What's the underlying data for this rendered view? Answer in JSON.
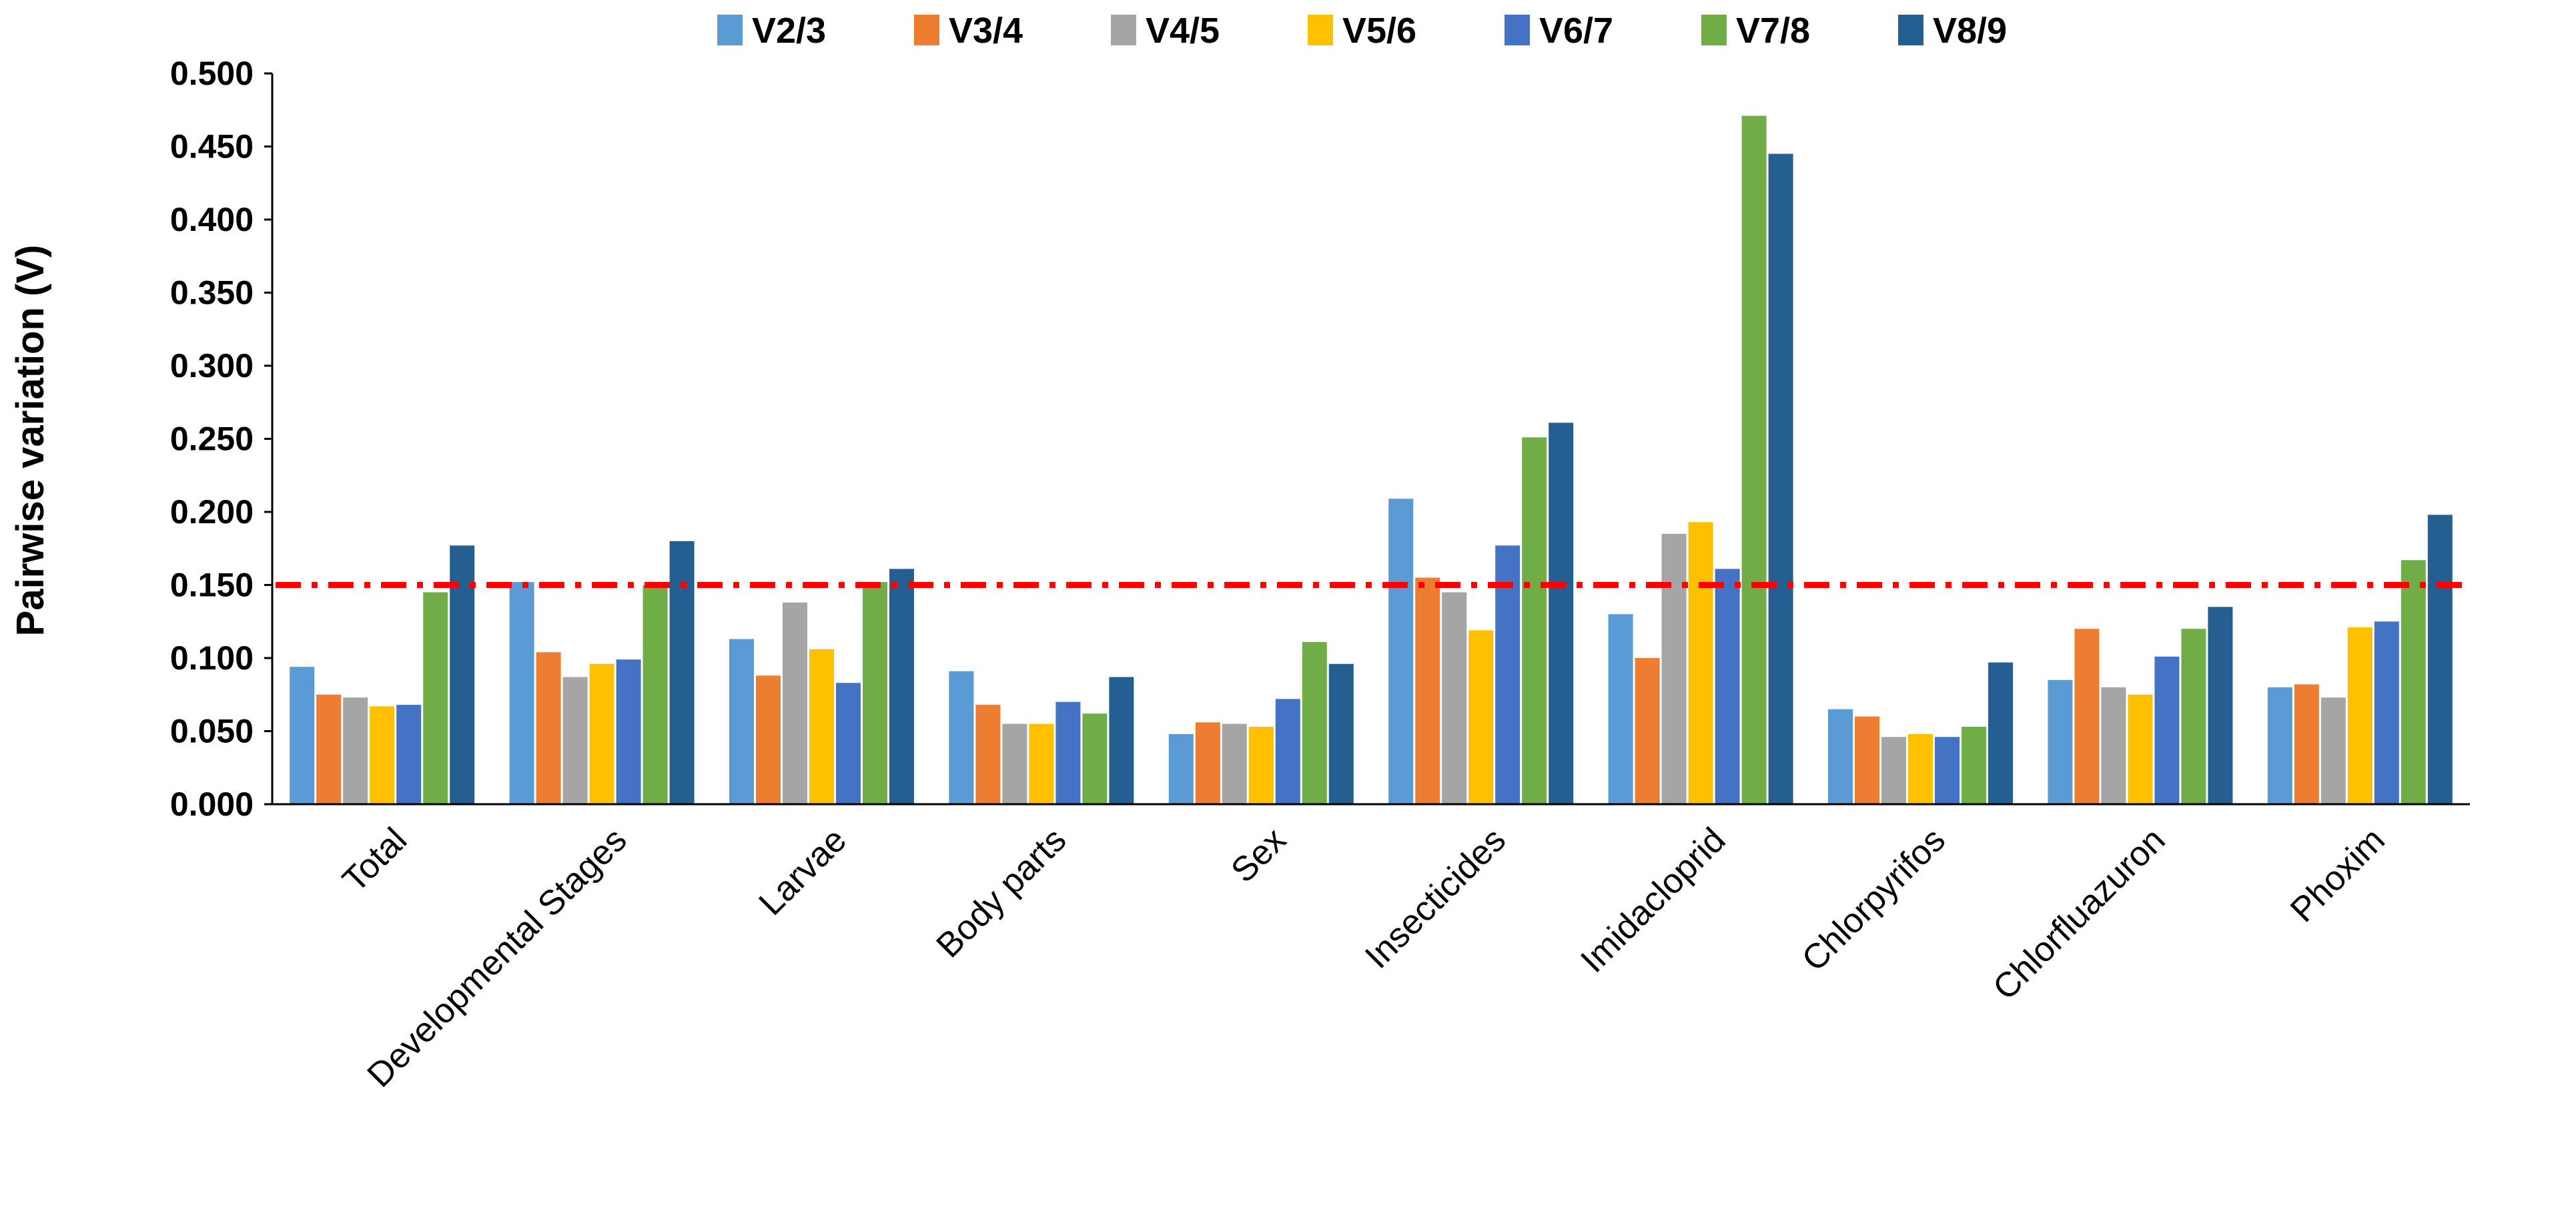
{
  "chart_data": {
    "type": "bar",
    "title": "",
    "xlabel": "",
    "ylabel": "Pairwise variation (V)",
    "ylim": [
      0,
      0.5
    ],
    "yticks": [
      "0.000",
      "0.050",
      "0.100",
      "0.150",
      "0.200",
      "0.250",
      "0.300",
      "0.350",
      "0.400",
      "0.450",
      "0.500"
    ],
    "categories": [
      "Total",
      "Developmental  Stages",
      "Larvae",
      "Body parts",
      "Sex",
      "Insecticides",
      "Imidacloprid",
      "Chlorpyrifos",
      "Chlorfluazuron",
      "Phoxim"
    ],
    "legend_position": "top",
    "series": [
      {
        "name": "V2/3",
        "color": "#5B9BD5",
        "values": [
          0.094,
          0.152,
          0.113,
          0.091,
          0.048,
          0.209,
          0.13,
          0.065,
          0.085,
          0.08
        ]
      },
      {
        "name": "V3/4",
        "color": "#ED7D31",
        "values": [
          0.075,
          0.104,
          0.088,
          0.068,
          0.056,
          0.155,
          0.1,
          0.06,
          0.12,
          0.082
        ]
      },
      {
        "name": "V4/5",
        "color": "#A5A5A5",
        "values": [
          0.073,
          0.087,
          0.138,
          0.055,
          0.055,
          0.145,
          0.185,
          0.046,
          0.08,
          0.073
        ]
      },
      {
        "name": "V5/6",
        "color": "#FFC000",
        "values": [
          0.067,
          0.096,
          0.106,
          0.055,
          0.053,
          0.119,
          0.193,
          0.048,
          0.075,
          0.121
        ]
      },
      {
        "name": "V6/7",
        "color": "#4472C4",
        "values": [
          0.068,
          0.099,
          0.083,
          0.07,
          0.072,
          0.177,
          0.161,
          0.046,
          0.101,
          0.125
        ]
      },
      {
        "name": "V7/8",
        "color": "#70AD47",
        "values": [
          0.145,
          0.15,
          0.152,
          0.062,
          0.111,
          0.251,
          0.471,
          0.053,
          0.12,
          0.167
        ]
      },
      {
        "name": "V8/9",
        "color": "#255E91",
        "values": [
          0.177,
          0.18,
          0.161,
          0.087,
          0.096,
          0.261,
          0.445,
          0.097,
          0.135,
          0.198
        ]
      }
    ],
    "reference_line": {
      "value": 0.15,
      "color": "#FF0000",
      "style": "dash-dot"
    }
  }
}
